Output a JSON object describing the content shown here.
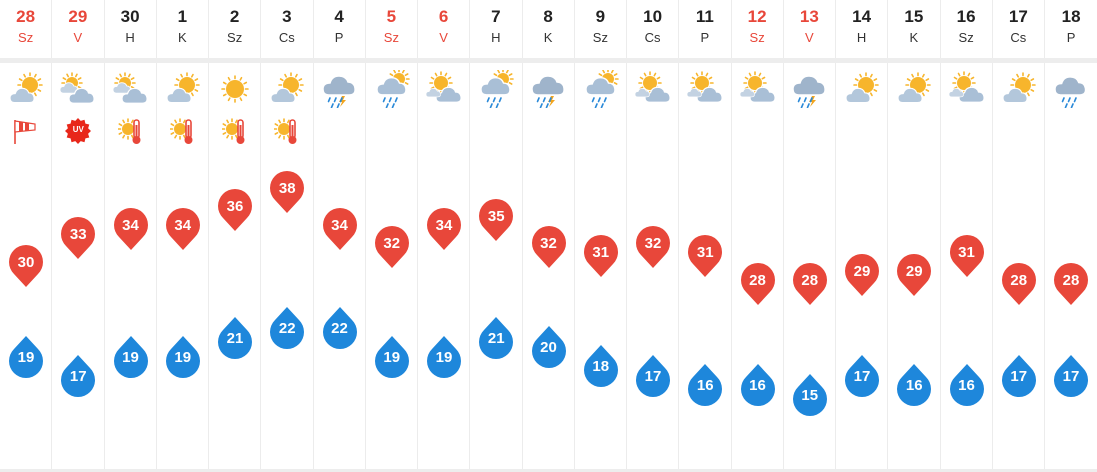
{
  "days": [
    {
      "date": "28",
      "weekday": "Sz",
      "weekend": true,
      "icon": "partly-sunny-icon",
      "badge": "windsock-icon",
      "max": "30",
      "min": "19"
    },
    {
      "date": "29",
      "weekday": "V",
      "weekend": true,
      "icon": "cloudy-sun-icon",
      "badge": "uv-warning-icon",
      "badge_text": "UV",
      "max": "33",
      "min": "17"
    },
    {
      "date": "30",
      "weekday": "H",
      "weekend": false,
      "icon": "cloudy-sun-icon",
      "badge": "heat-warning-icon",
      "max": "34",
      "min": "19"
    },
    {
      "date": "1",
      "weekday": "K",
      "weekend": false,
      "icon": "partly-sunny-icon",
      "badge": "heat-warning-icon",
      "max": "34",
      "min": "19"
    },
    {
      "date": "2",
      "weekday": "Sz",
      "weekend": false,
      "icon": "sunny-icon",
      "badge": "heat-warning-icon",
      "max": "36",
      "min": "21"
    },
    {
      "date": "3",
      "weekday": "Cs",
      "weekend": false,
      "icon": "partly-sunny-icon",
      "badge": "heat-warning-icon",
      "max": "38",
      "min": "22"
    },
    {
      "date": "4",
      "weekday": "P",
      "weekend": false,
      "icon": "thunderstorm-icon",
      "max": "34",
      "min": "22"
    },
    {
      "date": "5",
      "weekday": "Sz",
      "weekend": true,
      "icon": "sun-rain-icon",
      "max": "32",
      "min": "19"
    },
    {
      "date": "6",
      "weekday": "V",
      "weekend": true,
      "icon": "partly-cloudy-icon",
      "max": "34",
      "min": "19"
    },
    {
      "date": "7",
      "weekday": "H",
      "weekend": false,
      "icon": "sun-rain-icon",
      "max": "35",
      "min": "21"
    },
    {
      "date": "8",
      "weekday": "K",
      "weekend": false,
      "icon": "thunderstorm-icon",
      "max": "32",
      "min": "20"
    },
    {
      "date": "9",
      "weekday": "Sz",
      "weekend": false,
      "icon": "sun-rain-icon",
      "max": "31",
      "min": "18"
    },
    {
      "date": "10",
      "weekday": "Cs",
      "weekend": false,
      "icon": "partly-cloudy-icon",
      "max": "32",
      "min": "17"
    },
    {
      "date": "11",
      "weekday": "P",
      "weekend": false,
      "icon": "partly-cloudy-icon",
      "max": "31",
      "min": "16"
    },
    {
      "date": "12",
      "weekday": "Sz",
      "weekend": true,
      "icon": "partly-cloudy-icon",
      "max": "28",
      "min": "16"
    },
    {
      "date": "13",
      "weekday": "V",
      "weekend": true,
      "icon": "thunderstorm-icon",
      "max": "28",
      "min": "15"
    },
    {
      "date": "14",
      "weekday": "H",
      "weekend": false,
      "icon": "partly-sunny-icon",
      "max": "29",
      "min": "17"
    },
    {
      "date": "15",
      "weekday": "K",
      "weekend": false,
      "icon": "partly-sunny-icon",
      "max": "29",
      "min": "16"
    },
    {
      "date": "16",
      "weekday": "Sz",
      "weekend": false,
      "icon": "partly-cloudy-icon",
      "max": "31",
      "min": "16"
    },
    {
      "date": "17",
      "weekday": "Cs",
      "weekend": false,
      "icon": "partly-sunny-icon",
      "max": "28",
      "min": "17"
    },
    {
      "date": "18",
      "weekday": "P",
      "weekend": false,
      "icon": "light-rain-icon",
      "max": "28",
      "min": "17"
    }
  ],
  "colors": {
    "weekend": "#e8473a",
    "max_pin": "#e8473a",
    "min_drop": "#1e87db",
    "sun": "#f7b52c",
    "cloud": "#a9bfd6",
    "rain": "#2b8ad8",
    "bolt": "#f2a41c"
  }
}
